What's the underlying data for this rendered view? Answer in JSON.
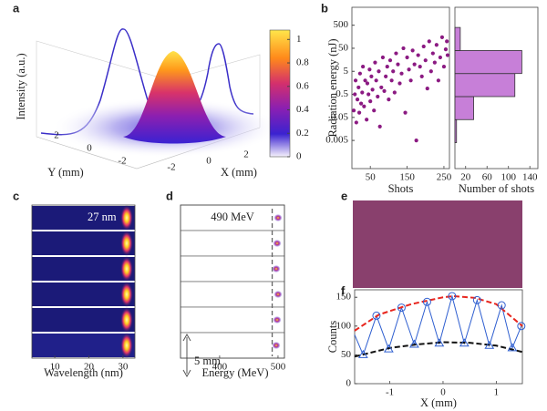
{
  "chart_data": [
    {
      "type": "surface",
      "panel": "a",
      "zlabel": "Intensity (a.u.)",
      "xlabel": "X (mm)",
      "ylabel": "Y (mm)",
      "xticks": [
        -2,
        0,
        2
      ],
      "yticks": [
        -2,
        0,
        2
      ],
      "colorbar_lim": [
        0,
        1.08
      ],
      "colorbar_ticks": [
        0,
        0.2,
        0.4,
        0.6,
        0.8,
        1
      ]
    },
    {
      "type": "scatter",
      "panel": "b",
      "xlabel": "Shots",
      "ylabel": "Radiation energy (nJ)",
      "log_y": true,
      "color": "#8b1a82",
      "xlim": [
        0,
        265
      ],
      "xticks": [
        50,
        150,
        250
      ],
      "ylim": [
        0.0003,
        3000
      ],
      "yticks": [
        0.005,
        0.05,
        0.5,
        5,
        50,
        500
      ],
      "x": [
        5,
        8,
        10,
        12,
        15,
        18,
        20,
        22,
        25,
        28,
        30,
        33,
        36,
        40,
        42,
        45,
        48,
        50,
        53,
        56,
        60,
        63,
        66,
        70,
        73,
        76,
        80,
        84,
        88,
        92,
        96,
        100,
        104,
        108,
        112,
        116,
        120,
        125,
        130,
        135,
        140,
        145,
        150,
        155,
        160,
        165,
        170,
        175,
        180,
        185,
        190,
        195,
        200,
        205,
        210,
        215,
        220,
        225,
        230,
        235,
        240,
        245,
        250,
        255,
        258,
        260
      ],
      "values": [
        0.1,
        0.5,
        2,
        0.03,
        0.3,
        1,
        0.08,
        4,
        0.2,
        0.6,
        8,
        0.15,
        2,
        0.04,
        1.5,
        0.5,
        6,
        0.25,
        3,
        0.8,
        0.1,
        12,
        2,
        0.4,
        5,
        0.02,
        1,
        20,
        0.7,
        3,
        8,
        0.3,
        15,
        2,
        5,
        0.6,
        30,
        10,
        1.5,
        4,
        50,
        0.08,
        20,
        6,
        2,
        40,
        10,
        0.005,
        25,
        8,
        3,
        60,
        15,
        0.9,
        100,
        5,
        30,
        12,
        70,
        2,
        20,
        150,
        8,
        45,
        100,
        25
      ]
    },
    {
      "type": "histogram",
      "panel": "",
      "xlabel": "Number of shots",
      "log_y": true,
      "color": "#c77fd8",
      "xlim": [
        0,
        155
      ],
      "xticks": [
        20,
        60,
        100,
        140
      ],
      "ylim": [
        0.0003,
        3000
      ],
      "bins": [
        0.004,
        0.04,
        0.4,
        4,
        40,
        400
      ],
      "values": [
        3,
        35,
        112,
        125,
        10
      ]
    },
    {
      "type": "spectra",
      "panel": "c",
      "xlabel": "Wavelength (nm)",
      "annotation": "27 nm",
      "xlim": [
        3.3,
        33.5
      ],
      "xticks": [
        10,
        20,
        30
      ]
    },
    {
      "type": "spots",
      "panel": "d",
      "xlabel": "Energy (MeV)",
      "marker_energy": 490,
      "marker_label": "490 MeV",
      "scale_label": "5 mm",
      "xlim": [
        333,
        511
      ],
      "xticks": [
        400,
        500
      ]
    },
    {
      "type": "image",
      "panel": "e"
    },
    {
      "type": "line",
      "panel": "f",
      "xlabel": "X (mm)",
      "ylabel": "Counts",
      "xlim": [
        -1.66,
        1.49
      ],
      "ylim": [
        0,
        163
      ],
      "xticks": [
        -1,
        0,
        1
      ],
      "yticks": [
        0,
        50,
        100,
        150
      ],
      "series": [
        {
          "color": "#2f5fd0",
          "style": "solid",
          "x": [
            -1.66,
            -1.5,
            -1.25,
            -1.02,
            -0.78,
            -0.54,
            -0.3,
            -0.07,
            0.17,
            0.4,
            0.64,
            0.87,
            1.1,
            1.3,
            1.47
          ],
          "values": [
            85,
            50,
            118,
            60,
            132,
            68,
            142,
            70,
            152,
            70,
            145,
            66,
            136,
            62,
            100
          ]
        },
        {
          "color": "#e8261e",
          "style": "dashed",
          "x": [
            -1.66,
            -1.2,
            -0.6,
            0,
            0.2,
            0.6,
            1.0,
            1.49
          ],
          "values": [
            92,
            120,
            138,
            150,
            152,
            149,
            138,
            100
          ]
        },
        {
          "color": "#111111",
          "style": "dashed",
          "x": [
            -1.66,
            -1,
            -0.5,
            0,
            0.5,
            1,
            1.49
          ],
          "values": [
            47,
            62,
            68,
            72,
            71,
            66,
            55
          ]
        },
        {
          "color": "#2f5fd0",
          "marker": "circle",
          "x": [
            -1.25,
            -0.78,
            -0.3,
            0.17,
            0.64,
            1.1,
            1.47
          ],
          "values": [
            118,
            132,
            142,
            152,
            145,
            136,
            100
          ]
        },
        {
          "color": "#2f5fd0",
          "marker": "triangle",
          "x": [
            -1.5,
            -1.02,
            -0.54,
            -0.07,
            0.4,
            0.87,
            1.3
          ],
          "values": [
            50,
            60,
            68,
            70,
            70,
            66,
            62
          ]
        }
      ]
    }
  ]
}
